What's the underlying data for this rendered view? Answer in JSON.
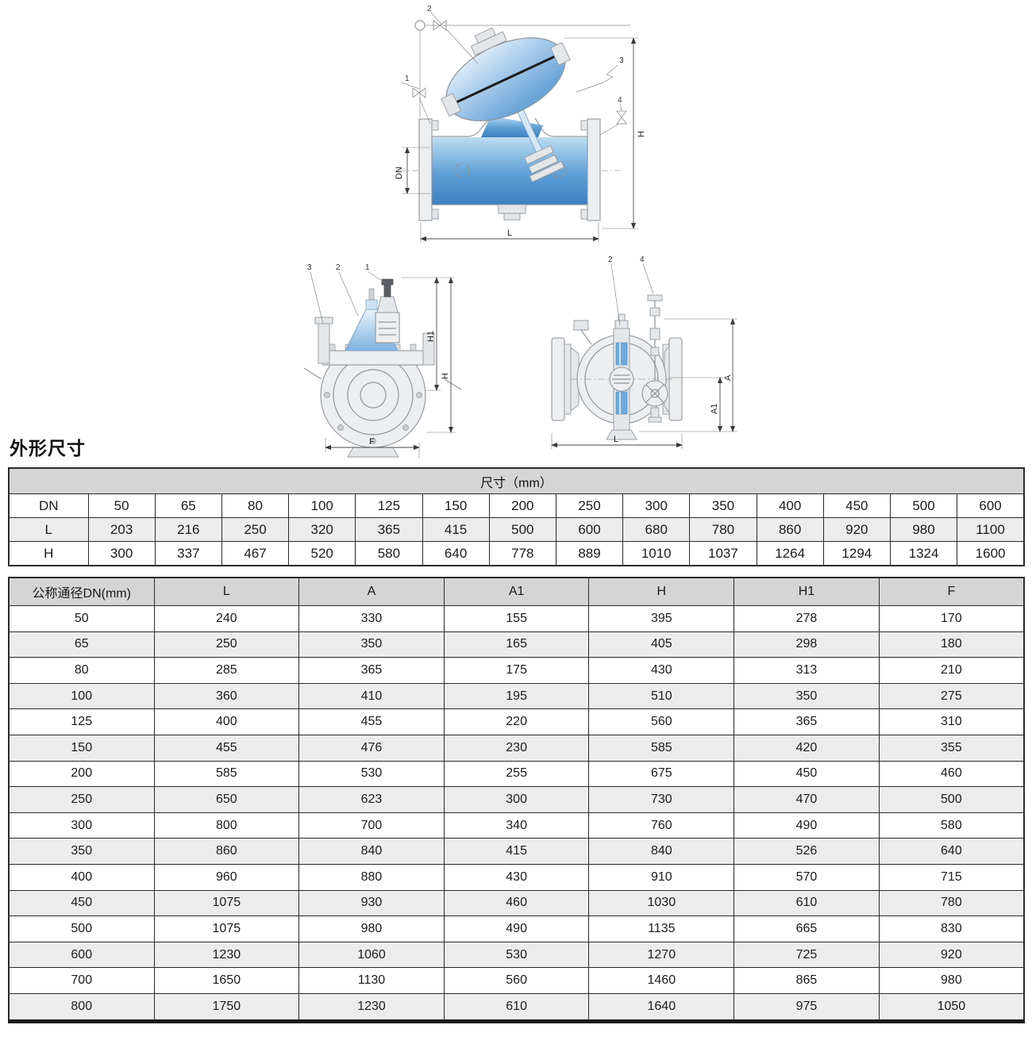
{
  "heading": "外形尺寸",
  "table1": {
    "title": "尺寸（mm）",
    "rows": [
      {
        "label": "DN",
        "values": [
          "50",
          "65",
          "80",
          "100",
          "125",
          "150",
          "200",
          "250",
          "300",
          "350",
          "400",
          "450",
          "500",
          "600"
        ]
      },
      {
        "label": "L",
        "values": [
          "203",
          "216",
          "250",
          "320",
          "365",
          "415",
          "500",
          "600",
          "680",
          "780",
          "860",
          "920",
          "980",
          "1100"
        ]
      },
      {
        "label": "H",
        "values": [
          "300",
          "337",
          "467",
          "520",
          "580",
          "640",
          "778",
          "889",
          "1010",
          "1037",
          "1264",
          "1294",
          "1324",
          "1600"
        ]
      }
    ]
  },
  "table2": {
    "headers": [
      "公称通径DN(mm)",
      "L",
      "A",
      "A1",
      "H",
      "H1",
      "F"
    ],
    "rows": [
      [
        "50",
        "240",
        "330",
        "155",
        "395",
        "278",
        "170"
      ],
      [
        "65",
        "250",
        "350",
        "165",
        "405",
        "298",
        "180"
      ],
      [
        "80",
        "285",
        "365",
        "175",
        "430",
        "313",
        "210"
      ],
      [
        "100",
        "360",
        "410",
        "195",
        "510",
        "350",
        "275"
      ],
      [
        "125",
        "400",
        "455",
        "220",
        "560",
        "365",
        "310"
      ],
      [
        "150",
        "455",
        "476",
        "230",
        "585",
        "420",
        "355"
      ],
      [
        "200",
        "585",
        "530",
        "255",
        "675",
        "450",
        "460"
      ],
      [
        "250",
        "650",
        "623",
        "300",
        "730",
        "470",
        "500"
      ],
      [
        "300",
        "800",
        "700",
        "340",
        "760",
        "490",
        "580"
      ],
      [
        "350",
        "860",
        "840",
        "415",
        "840",
        "526",
        "640"
      ],
      [
        "400",
        "960",
        "880",
        "430",
        "910",
        "570",
        "715"
      ],
      [
        "450",
        "1075",
        "930",
        "460",
        "1030",
        "610",
        "780"
      ],
      [
        "500",
        "1075",
        "980",
        "490",
        "1135",
        "665",
        "830"
      ],
      [
        "600",
        "1230",
        "1060",
        "530",
        "1270",
        "725",
        "920"
      ],
      [
        "700",
        "1650",
        "1130",
        "560",
        "1460",
        "865",
        "980"
      ],
      [
        "800",
        "1750",
        "1230",
        "610",
        "1640",
        "975",
        "1050"
      ]
    ]
  },
  "drawings": {
    "cross_section": {
      "callout_1": "1",
      "callout_2": "2",
      "callout_3": "3",
      "callout_4": "4",
      "dim_dn": "DN",
      "dim_l": "L",
      "dim_h": "H"
    },
    "front_view": {
      "callout_3": "3",
      "callout_2": "2",
      "callout_1": "1",
      "dim_h1": "H1",
      "dim_h": "H",
      "dim_f": "F"
    },
    "side_view": {
      "callout_2": "2",
      "callout_4": "4",
      "dim_a": "A",
      "dim_a1": "A1",
      "dim_l": "L"
    }
  },
  "colors": {
    "water_blue_deep": "#4f94cf",
    "water_blue_light": "#cfe8fa",
    "line_gray": "#8f969c",
    "table_border": "#2a2a2a",
    "header_bg": "#d5d5d5",
    "alt_row_bg": "#ececec"
  }
}
